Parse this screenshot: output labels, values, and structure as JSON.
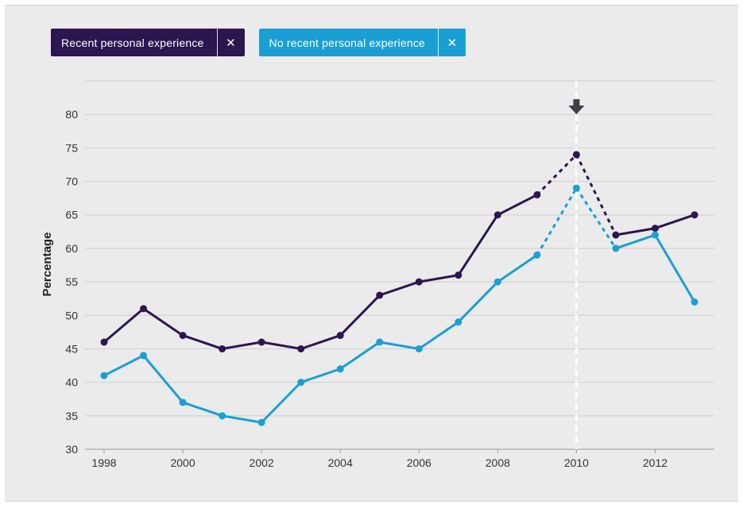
{
  "legend": {
    "recent_label": "Recent personal experience",
    "no_recent_label": "No recent personal experience",
    "remove_glyph": "✕"
  },
  "icons": {
    "remove": "close-icon",
    "marker": "arrow-down-icon"
  },
  "colors": {
    "recent": "#2c1650",
    "no_recent": "#1a9fd4",
    "panel_bg": "#ebebeb",
    "grid": "#cfcfcf",
    "marker": "#3c4347",
    "highlight_line": "#ffffff"
  },
  "chart_data": {
    "type": "line",
    "title": "",
    "xlabel": "",
    "ylabel": "Percentage",
    "x": [
      1998,
      1999,
      2000,
      2001,
      2002,
      2003,
      2004,
      2005,
      2006,
      2007,
      2008,
      2009,
      2010,
      2011,
      2012,
      2013
    ],
    "xticks": [
      "1998",
      "2000",
      "2002",
      "2004",
      "2006",
      "2008",
      "2010",
      "2012"
    ],
    "yticks": [
      "30",
      "35",
      "40",
      "45",
      "50",
      "55",
      "60",
      "65",
      "70",
      "75",
      "80"
    ],
    "xlim": [
      1998,
      2013
    ],
    "ylim": [
      30,
      85
    ],
    "highlight_x": 2010,
    "dashed_segments_between": [
      2009,
      2011
    ],
    "grid": true,
    "legend_position": "top-left",
    "series": [
      {
        "name": "Recent personal experience",
        "values": [
          46,
          51,
          47,
          45,
          46,
          45,
          47,
          53,
          55,
          56,
          65,
          68,
          74,
          62,
          63,
          65
        ]
      },
      {
        "name": "No recent personal experience",
        "values": [
          41,
          44,
          37,
          35,
          34,
          40,
          42,
          46,
          45,
          49,
          55,
          59,
          69,
          60,
          62,
          52
        ]
      }
    ]
  }
}
